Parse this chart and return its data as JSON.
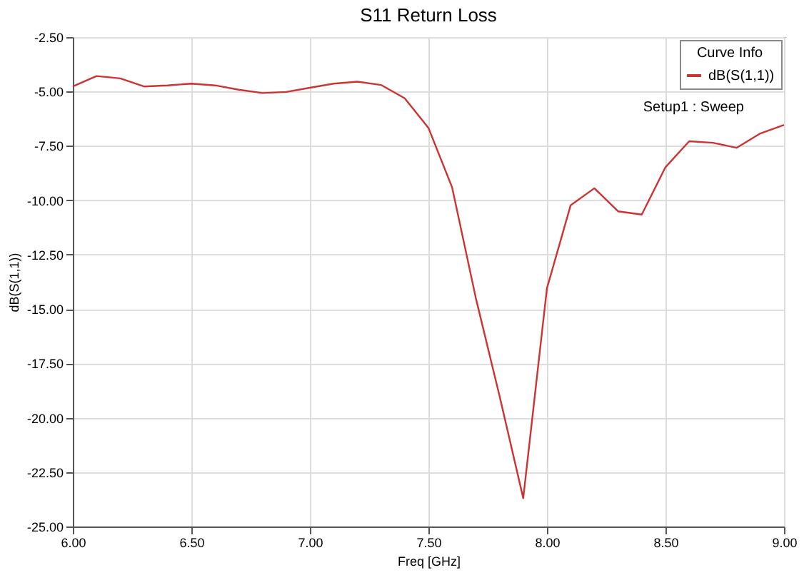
{
  "chart_data": {
    "type": "line",
    "title": "S11 Return Loss",
    "xlabel": "Freq [GHz]",
    "ylabel": "dB(S(1,1))",
    "legend_title": "Curve Info",
    "x": [
      6.0,
      6.1,
      6.2,
      6.3,
      6.4,
      6.5,
      6.6,
      6.7,
      6.8,
      6.9,
      7.0,
      7.1,
      7.2,
      7.3,
      7.4,
      7.5,
      7.6,
      7.7,
      7.8,
      7.9,
      8.0,
      8.1,
      8.2,
      8.3,
      8.4,
      8.5,
      8.6,
      8.7,
      8.8,
      8.9,
      9.0
    ],
    "series": [
      {
        "name": "dB(S(1,1))",
        "color": "#cc3333",
        "values": [
          -4.77,
          -4.29,
          -4.4,
          -4.77,
          -4.72,
          -4.64,
          -4.72,
          -4.92,
          -5.07,
          -5.02,
          -4.83,
          -4.64,
          -4.55,
          -4.7,
          -5.31,
          -6.67,
          -9.41,
          -14.5,
          -19.0,
          -23.7,
          -14.05,
          -10.23,
          -9.45,
          -10.51,
          -10.66,
          -8.48,
          -7.29,
          -7.36,
          -7.59,
          -6.93,
          -6.54
        ]
      }
    ],
    "xlim": [
      6.0,
      9.0
    ],
    "xticks": [
      {
        "value": 6.0,
        "label": "6.00"
      },
      {
        "value": 6.5,
        "label": "6.50"
      },
      {
        "value": 7.0,
        "label": "7.00"
      },
      {
        "value": 7.5,
        "label": "7.50"
      },
      {
        "value": 8.0,
        "label": "8.00"
      },
      {
        "value": 8.5,
        "label": "8.50"
      },
      {
        "value": 9.0,
        "label": "9.00"
      }
    ],
    "ylim": [
      -25.0,
      -2.5
    ],
    "yticks": [
      {
        "value": -2.5,
        "label": "-2.50"
      },
      {
        "value": -5.0,
        "label": "-5.00"
      },
      {
        "value": -7.5,
        "label": "-7.50"
      },
      {
        "value": -10.0,
        "label": "-10.00"
      },
      {
        "value": -12.5,
        "label": "-12.50"
      },
      {
        "value": -15.0,
        "label": "-15.00"
      },
      {
        "value": -17.5,
        "label": "-17.50"
      },
      {
        "value": -20.0,
        "label": "-20.00"
      },
      {
        "value": -22.5,
        "label": "-22.50"
      },
      {
        "value": -25.0,
        "label": "-25.00"
      }
    ],
    "grid": true,
    "legend": "top right",
    "marker": "none",
    "line_style": "solid",
    "annotations": [
      "Setup1 : Sweep"
    ]
  }
}
